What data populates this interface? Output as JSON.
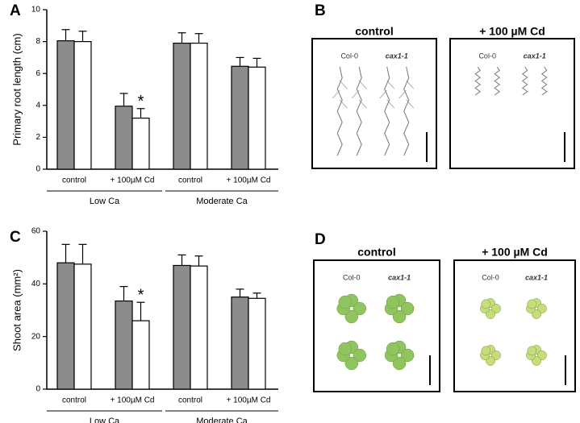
{
  "chart_data": [
    {
      "type": "bar",
      "panel": "A",
      "ylabel": "Primary root length (cm)",
      "categories": [
        "control",
        "+ 100µM Cd",
        "control",
        "+ 100µM Cd"
      ],
      "groups": [
        "Low Ca",
        "Moderate Ca"
      ],
      "series": [
        {
          "color": "#8c8c8c",
          "values": [
            8.05,
            3.95,
            7.9,
            6.45
          ],
          "errors": [
            0.7,
            0.8,
            0.65,
            0.55
          ]
        },
        {
          "color": "#ffffff",
          "values": [
            8.0,
            3.2,
            7.9,
            6.4
          ],
          "errors": [
            0.65,
            0.6,
            0.6,
            0.55
          ]
        }
      ],
      "annotations": [
        {
          "text": "*",
          "series": 1,
          "category": 1
        }
      ],
      "ylim": [
        0,
        10
      ],
      "yticks": [
        0,
        2,
        4,
        6,
        8,
        10
      ]
    },
    {
      "type": "bar",
      "panel": "C",
      "ylabel": "Shoot area (mm²)",
      "categories": [
        "control",
        "+ 100µM Cd",
        "control",
        "+ 100µM Cd"
      ],
      "groups": [
        "Low Ca",
        "Moderate Ca"
      ],
      "series": [
        {
          "color": "#8c8c8c",
          "values": [
            48,
            33.5,
            47,
            35
          ],
          "errors": [
            7,
            5.5,
            4,
            3
          ]
        },
        {
          "color": "#ffffff",
          "values": [
            47.5,
            26,
            46.8,
            34.5
          ],
          "errors": [
            7.5,
            7,
            3.8,
            2
          ]
        }
      ],
      "annotations": [
        {
          "text": "*",
          "series": 1,
          "category": 1
        }
      ],
      "ylim": [
        0,
        60
      ],
      "yticks": [
        0,
        20,
        40,
        60
      ]
    }
  ],
  "photo_panels": [
    {
      "panel": "B",
      "kind": "roots",
      "images": [
        {
          "title": "control",
          "labels": [
            "Col-0",
            "cax1-1"
          ]
        },
        {
          "title": "+ 100 µM Cd",
          "labels": [
            "Col-0",
            "cax1-1"
          ]
        }
      ]
    },
    {
      "panel": "D",
      "kind": "shoots",
      "images": [
        {
          "title": "control",
          "labels": [
            "Col-0",
            "cax1-1"
          ]
        },
        {
          "title": "+ 100 µM Cd",
          "labels": [
            "Col-0",
            "cax1-1"
          ]
        }
      ]
    }
  ]
}
